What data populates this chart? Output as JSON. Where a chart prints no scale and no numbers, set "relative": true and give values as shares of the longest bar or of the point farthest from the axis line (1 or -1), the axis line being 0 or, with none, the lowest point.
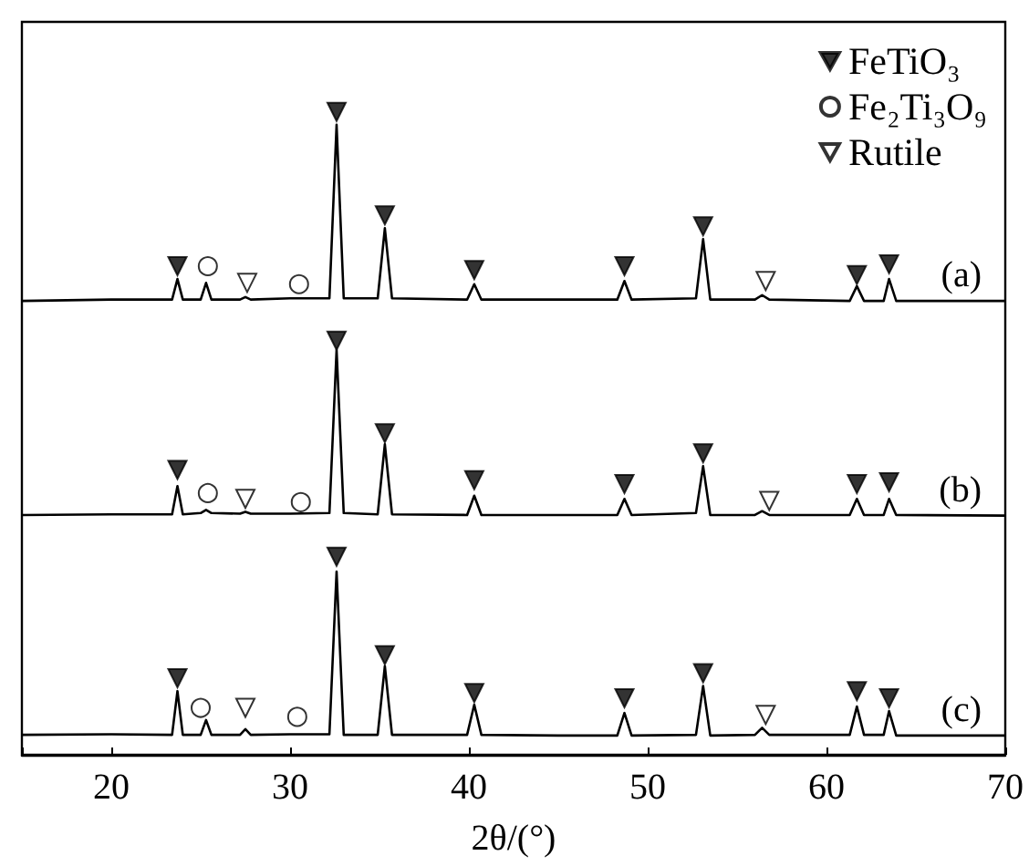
{
  "chart_data": {
    "type": "line",
    "relative": true,
    "xlabel": "2θ/(°)",
    "xlim": [
      15,
      70
    ],
    "xticks": [
      {
        "value": 15,
        "label": null
      },
      20,
      30,
      40,
      50,
      60,
      70
    ],
    "grid": false,
    "legend": "top right",
    "marker": "none",
    "x": [
      15,
      20,
      23.4,
      23.7,
      24.0,
      25.0,
      25.3,
      25.6,
      27.2,
      27.5,
      27.8,
      30,
      32.2,
      32.6,
      33.0,
      34.9,
      35.3,
      35.7,
      39.9,
      40.3,
      40.7,
      45,
      48.3,
      48.7,
      49.1,
      52.7,
      53.1,
      53.5,
      56.0,
      56.4,
      56.8,
      61.3,
      61.7,
      62.1,
      63.2,
      63.5,
      63.9,
      70
    ],
    "series": [
      {
        "name": "(a)",
        "color": "#000000",
        "values": [
          0.706,
          0.708,
          0.708,
          0.74,
          0.708,
          0.708,
          0.734,
          0.708,
          0.708,
          0.712,
          0.708,
          0.71,
          0.71,
          0.98,
          0.71,
          0.71,
          0.819,
          0.71,
          0.708,
          0.732,
          0.708,
          0.708,
          0.708,
          0.737,
          0.708,
          0.71,
          0.802,
          0.708,
          0.708,
          0.715,
          0.708,
          0.706,
          0.729,
          0.706,
          0.706,
          0.74,
          0.706,
          0.706
        ]
      },
      {
        "name": "(b)",
        "color": "#000000",
        "values": [
          0.373,
          0.374,
          0.374,
          0.418,
          0.374,
          0.376,
          0.381,
          0.376,
          0.375,
          0.378,
          0.375,
          0.375,
          0.376,
          0.63,
          0.376,
          0.374,
          0.483,
          0.374,
          0.373,
          0.403,
          0.373,
          0.373,
          0.373,
          0.398,
          0.373,
          0.376,
          0.449,
          0.373,
          0.373,
          0.379,
          0.373,
          0.373,
          0.398,
          0.373,
          0.373,
          0.398,
          0.373,
          0.372
        ]
      },
      {
        "name": "(c)",
        "color": "#000000",
        "values": [
          0.031,
          0.032,
          0.031,
          0.099,
          0.031,
          0.031,
          0.054,
          0.031,
          0.031,
          0.04,
          0.031,
          0.032,
          0.032,
          0.285,
          0.031,
          0.031,
          0.138,
          0.031,
          0.031,
          0.078,
          0.031,
          0.03,
          0.03,
          0.065,
          0.03,
          0.031,
          0.107,
          0.03,
          0.031,
          0.042,
          0.031,
          0.031,
          0.075,
          0.031,
          0.031,
          0.068,
          0.03,
          0.03
        ]
      },
      {
        "name": "FeTiO₃",
        "type": "scatter",
        "marker": "triangle",
        "color": "#000000",
        "x": [
          23.7,
          32.6,
          35.3,
          40.3,
          48.7,
          53.1,
          61.7,
          63.5,
          23.7,
          32.6,
          35.3,
          40.3,
          48.7,
          53.1,
          61.7,
          63.5,
          23.7,
          32.6,
          35.3,
          40.3,
          48.7,
          53.1,
          61.7,
          63.5
        ],
        "values": [
          0.76,
          1.0,
          0.839,
          0.754,
          0.76,
          0.822,
          0.746,
          0.763,
          0.443,
          0.644,
          0.5,
          0.427,
          0.421,
          0.469,
          0.421,
          0.424,
          0.119,
          0.308,
          0.155,
          0.096,
          0.088,
          0.127,
          0.099,
          0.088
        ]
      },
      {
        "name": "Fe₂Ti₃O₉",
        "type": "scatter",
        "marker": "circle",
        "color": "#ffffff",
        "x": [
          25.4,
          30.5,
          25.4,
          30.6,
          25.0,
          30.4
        ],
        "values": [
          0.76,
          0.732,
          0.407,
          0.393,
          0.073,
          0.059
        ]
      },
      {
        "name": "Rutile",
        "type": "scatter",
        "marker": "triangle",
        "color": "#ffffff",
        "x": [
          27.6,
          56.6,
          27.5,
          56.8,
          27.5,
          56.6
        ],
        "values": [
          0.734,
          0.737,
          0.398,
          0.395,
          0.073,
          0.062
        ]
      }
    ]
  }
}
